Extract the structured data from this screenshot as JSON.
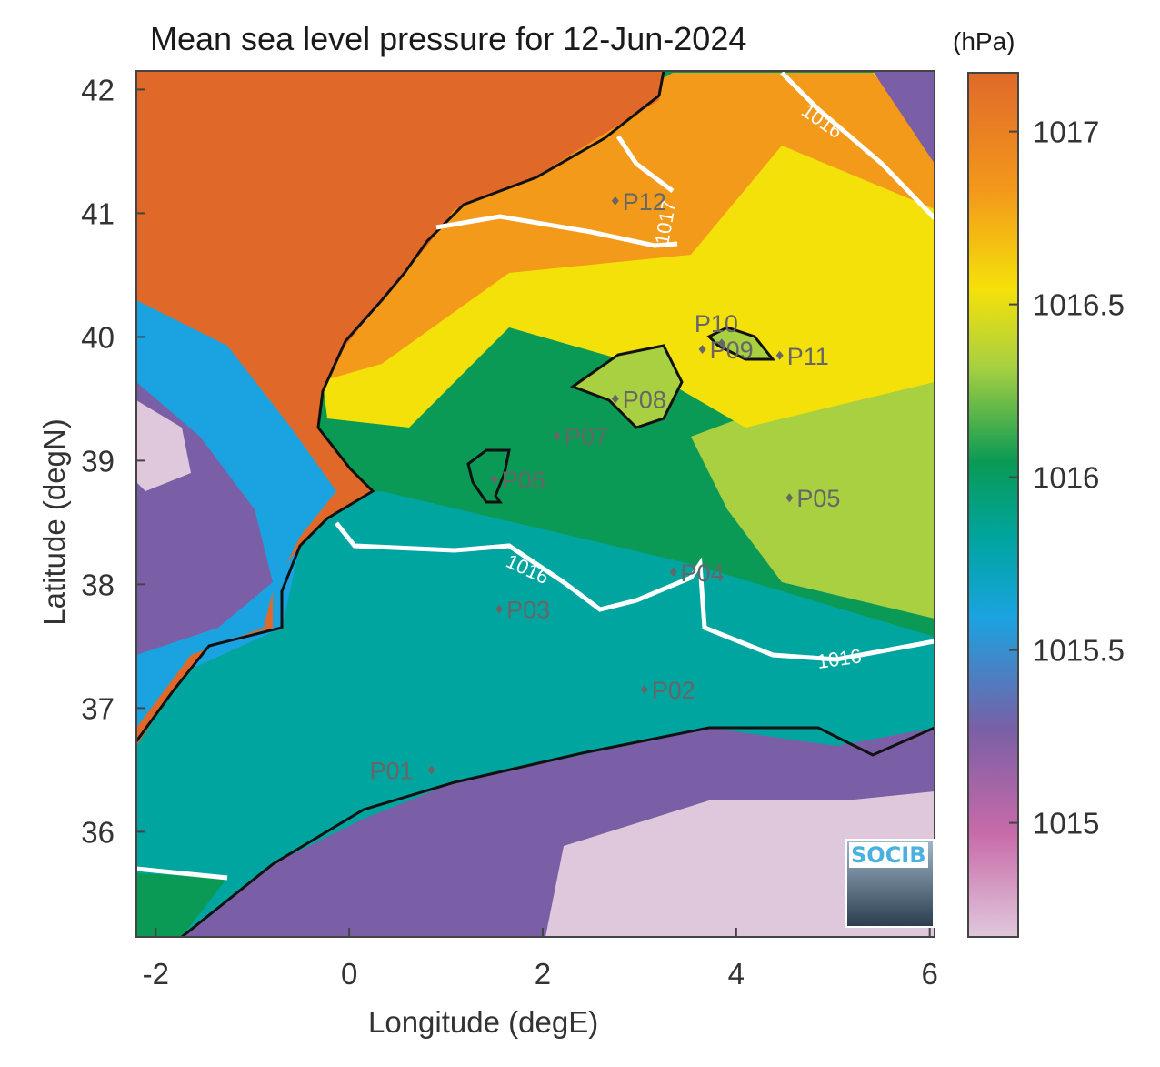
{
  "title": "Mean sea level pressure for 12-Jun-2024",
  "colorbar": {
    "unit": "(hPa)",
    "ticks": [
      "1017",
      "1016.5",
      "1016",
      "1015.5",
      "1015"
    ],
    "colors": [
      "#e0c8dc",
      "#c86aa8",
      "#7a5fa6",
      "#1aa3e0",
      "#00a5a0",
      "#0a9a55",
      "#a8d040",
      "#f5e10a",
      "#f39a1a",
      "#e0692a"
    ]
  },
  "axes": {
    "xlabel": "Longitude (degE)",
    "ylabel": "Latitude (degN)",
    "xticks": [
      "-2",
      "0",
      "2",
      "4",
      "6"
    ],
    "yticks": [
      "42",
      "41",
      "40",
      "39",
      "38",
      "37",
      "36"
    ]
  },
  "contours": [
    "1016",
    "1016",
    "1016",
    "1017"
  ],
  "stations": [
    {
      "id": "P01",
      "lon": 0.85,
      "lat": 36.5
    },
    {
      "id": "P02",
      "lon": 3.05,
      "lat": 37.15
    },
    {
      "id": "P03",
      "lon": 1.55,
      "lat": 37.8
    },
    {
      "id": "P04",
      "lon": 3.35,
      "lat": 38.1
    },
    {
      "id": "P05",
      "lon": 4.55,
      "lat": 38.7
    },
    {
      "id": "P06",
      "lon": 1.5,
      "lat": 38.85
    },
    {
      "id": "P07",
      "lon": 2.15,
      "lat": 39.2
    },
    {
      "id": "P08",
      "lon": 2.75,
      "lat": 39.5
    },
    {
      "id": "P09",
      "lon": 3.65,
      "lat": 39.9
    },
    {
      "id": "P10",
      "lon": 3.85,
      "lat": 39.95
    },
    {
      "id": "P11",
      "lon": 4.45,
      "lat": 39.85
    },
    {
      "id": "P12",
      "lon": 2.75,
      "lat": 41.1
    }
  ],
  "logo": "SOCIB"
}
